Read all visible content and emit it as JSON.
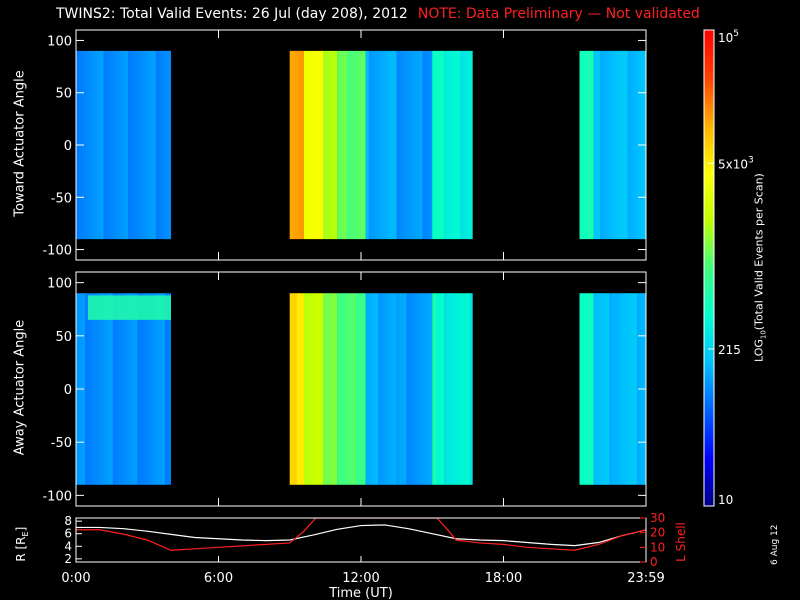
{
  "title": {
    "main": "TWINS2: Total Valid Events: 26 Jul (day 208), 2012",
    "note": "NOTE: Data Preliminary — Not validated",
    "note_color": "#ff2020"
  },
  "date_stamp": "6 Aug 12",
  "chart_data": [
    {
      "type": "heatmap",
      "ylabel": "Toward Actuator Angle",
      "yticks": [
        "100",
        "50",
        "0",
        "-50",
        "-100"
      ],
      "ylim": [
        -110,
        110
      ],
      "xlim": [
        0,
        24
      ],
      "data_angle_range": [
        -90,
        90
      ],
      "coverage_hours": [
        [
          0.0,
          4.0
        ],
        [
          9.0,
          16.7
        ],
        [
          21.2,
          24.0
        ]
      ],
      "level_profile": [
        {
          "start": 0.0,
          "end": 4.0,
          "level": 0.25
        },
        {
          "start": 9.0,
          "end": 9.6,
          "level": 0.82
        },
        {
          "start": 9.6,
          "end": 10.4,
          "level": 0.68
        },
        {
          "start": 10.4,
          "end": 11.0,
          "level": 0.58
        },
        {
          "start": 11.0,
          "end": 12.2,
          "level": 0.52
        },
        {
          "start": 12.2,
          "end": 13.5,
          "level": 0.28
        },
        {
          "start": 13.5,
          "end": 15.0,
          "level": 0.26
        },
        {
          "start": 15.0,
          "end": 15.5,
          "level": 0.42
        },
        {
          "start": 15.5,
          "end": 16.7,
          "level": 0.38
        },
        {
          "start": 21.2,
          "end": 21.8,
          "level": 0.42
        },
        {
          "start": 21.8,
          "end": 24.0,
          "level": 0.3
        }
      ]
    },
    {
      "type": "heatmap",
      "ylabel": "Away Actuator Angle",
      "yticks": [
        "100",
        "50",
        "0",
        "-50",
        "-100"
      ],
      "ylim": [
        -110,
        110
      ],
      "xlim": [
        0,
        24
      ],
      "data_angle_range": [
        -90,
        90
      ],
      "coverage_hours": [
        [
          0.0,
          4.0
        ],
        [
          9.0,
          16.7
        ],
        [
          21.2,
          24.0
        ]
      ],
      "level_profile": [
        {
          "start": 0.0,
          "end": 4.0,
          "level": 0.25
        },
        {
          "start": 9.0,
          "end": 9.6,
          "level": 0.74
        },
        {
          "start": 9.6,
          "end": 10.4,
          "level": 0.62
        },
        {
          "start": 10.4,
          "end": 11.0,
          "level": 0.55
        },
        {
          "start": 11.0,
          "end": 12.2,
          "level": 0.5
        },
        {
          "start": 12.2,
          "end": 13.5,
          "level": 0.28
        },
        {
          "start": 13.5,
          "end": 15.0,
          "level": 0.26
        },
        {
          "start": 15.0,
          "end": 15.5,
          "level": 0.42
        },
        {
          "start": 15.5,
          "end": 16.7,
          "level": 0.38
        },
        {
          "start": 21.2,
          "end": 21.8,
          "level": 0.42
        },
        {
          "start": 21.8,
          "end": 24.0,
          "level": 0.3
        }
      ],
      "hotspot": {
        "hours": [
          0.5,
          4.0
        ],
        "angle": [
          65,
          88
        ],
        "level": 0.45
      }
    },
    {
      "type": "line",
      "xlabel": "Time (UT)",
      "xticks": [
        "0:00",
        "6:00",
        "12:00",
        "18:00",
        "23:59"
      ],
      "xtick_hours": [
        0,
        6,
        12,
        18,
        24
      ],
      "ylabel_left": "R [R",
      "ylabel_left_sub": "E",
      "ylabel_left_close": "]",
      "yticks_left": [
        "8",
        "6",
        "4",
        "2"
      ],
      "ylim_left": [
        1.5,
        8.5
      ],
      "ylabel_right": "L Shell",
      "yticks_right": [
        "30",
        "20",
        "10",
        "0"
      ],
      "ylim_right": [
        0,
        30
      ],
      "series": [
        {
          "color": "#ffffff",
          "x": [
            0,
            1,
            2,
            3,
            4,
            5,
            6,
            7,
            8,
            9,
            10,
            11,
            12,
            13,
            14,
            15,
            16,
            17,
            18,
            19,
            20,
            21,
            22,
            23,
            24
          ],
          "y": [
            7.0,
            7.0,
            6.8,
            6.4,
            5.9,
            5.4,
            5.2,
            5.0,
            4.9,
            5.0,
            5.8,
            6.7,
            7.3,
            7.4,
            6.8,
            6.0,
            5.2,
            5.0,
            4.9,
            4.6,
            4.3,
            4.1,
            4.6,
            5.7,
            6.6
          ]
        },
        {
          "color": "#ff2020",
          "x": [
            0,
            1,
            2,
            3,
            4,
            5,
            6,
            7,
            8,
            9,
            9.6,
            10.1,
            15.2,
            15.7,
            16,
            17,
            18,
            19,
            20,
            21,
            22,
            23,
            24
          ],
          "y": [
            22,
            22,
            19,
            15,
            8,
            9,
            10,
            11,
            12,
            13,
            21,
            30,
            30,
            21,
            15,
            13,
            12,
            10,
            9,
            8,
            12,
            18,
            22
          ]
        }
      ]
    }
  ],
  "colorbar": {
    "label_log": "LOG",
    "label_sub": "10",
    "label_rest": "(Total Valid Events per Scan)",
    "ticks": [
      {
        "base": "10",
        "exp": "5",
        "frac": 1.0
      },
      {
        "base": "5x10",
        "exp": "3",
        "frac": 0.72
      },
      {
        "base": "215",
        "exp": "",
        "frac": 0.33
      },
      {
        "base": "10",
        "exp": "",
        "frac": 0.0
      }
    ],
    "colors": [
      "#000080",
      "#0000ff",
      "#0060ff",
      "#00c0ff",
      "#00ffd0",
      "#40ff80",
      "#c0ff00",
      "#ffff00",
      "#ffb000",
      "#ff4000",
      "#ff0000"
    ]
  }
}
